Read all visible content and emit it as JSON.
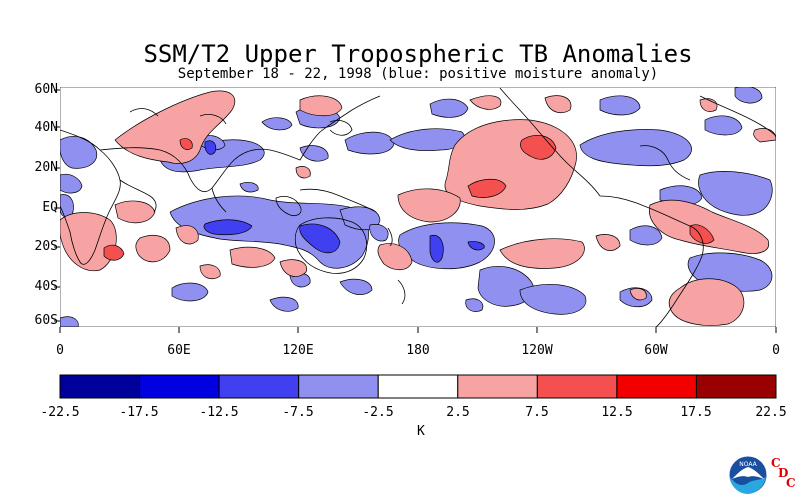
{
  "title": "SSM/T2 Upper Tropospheric TB Anomalies",
  "subtitle": "September 18 - 22, 1998 (blue: positive moisture anomaly)",
  "map": {
    "lat_labels": [
      "60N",
      "40N",
      "20N",
      "EQ",
      "20S",
      "40S",
      "60S"
    ],
    "lon_labels": [
      "0",
      "60E",
      "120E",
      "180",
      "120W",
      "60W",
      "0"
    ]
  },
  "colorbar": {
    "tick_labels": [
      "-22.5",
      "-17.5",
      "-12.5",
      "-7.5",
      "-2.5",
      "2.5",
      "7.5",
      "12.5",
      "17.5",
      "22.5"
    ],
    "colors": [
      "#00009a",
      "#0000e0",
      "#4040f0",
      "#9090f0",
      "#ffffff",
      "#f7a3a3",
      "#f45050",
      "#f20000",
      "#990000"
    ],
    "unit": "K"
  },
  "colors": {
    "positive_light": "#f7a3a3",
    "positive_medium": "#f45050",
    "negative_light": "#9090f0",
    "negative_medium": "#4040f0"
  },
  "logo": {
    "icon": "noaa-logo",
    "text": "NOAA",
    "cdc_letters": [
      "C",
      "D",
      "C"
    ]
  }
}
